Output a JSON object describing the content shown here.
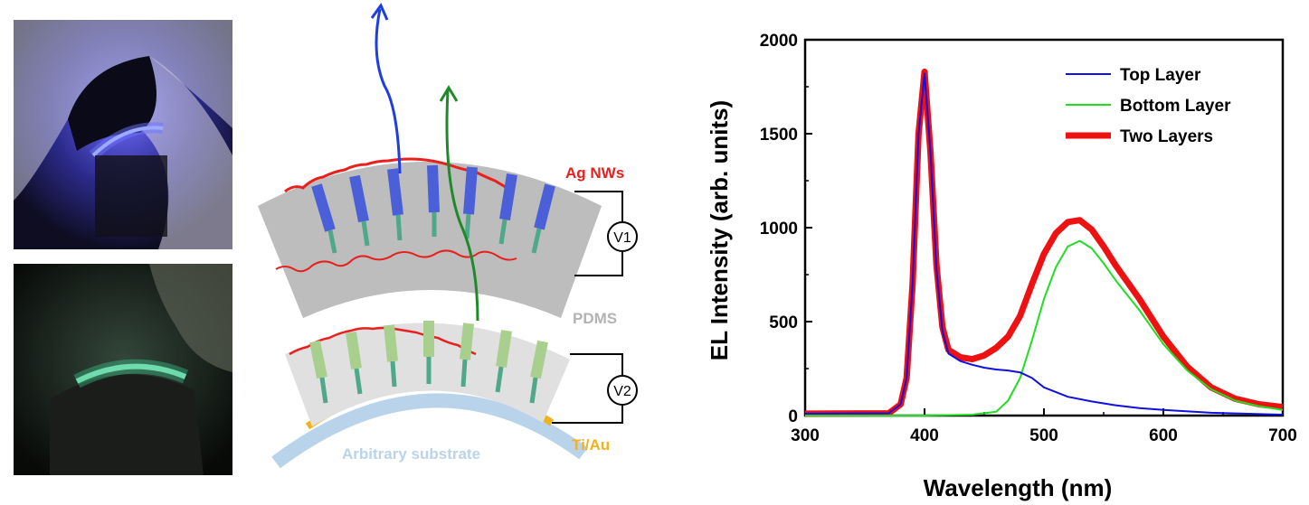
{
  "diagram": {
    "label_agnws": "Ag NWs",
    "label_v1": "V1",
    "label_v2": "V2",
    "label_pdms": "PDMS",
    "label_tiau": "Ti/Au",
    "label_substrate": "Arbitrary substrate",
    "colors": {
      "agnws": "#e8201e",
      "pdms": "#b3b3b3",
      "tiau": "#f2b21e",
      "substrate": "#b9d4ea",
      "blue_emission": "#1f3ee0",
      "green_emission": "#1f8a2a"
    }
  },
  "photos": {
    "top": {
      "color": "#3a2fd0"
    },
    "bottom": {
      "color": "#3fdc9a"
    }
  },
  "chart_data": {
    "type": "line",
    "xlabel": "Wavelength (nm)",
    "ylabel": "EL Intensity (arb. units)",
    "xlim": [
      300,
      700
    ],
    "ylim": [
      0,
      2000
    ],
    "xticks": [
      300,
      400,
      500,
      600,
      700
    ],
    "yticks": [
      0,
      500,
      1000,
      1500,
      2000
    ],
    "legend_position": "top-right",
    "series": [
      {
        "name": "Top Layer",
        "color": "#1010e0",
        "width": 2,
        "x": [
          300,
          370,
          380,
          385,
          390,
          395,
          400,
          405,
          410,
          415,
          420,
          430,
          440,
          450,
          460,
          470,
          480,
          490,
          500,
          520,
          540,
          560,
          580,
          600,
          640,
          700
        ],
        "y": [
          10,
          12,
          60,
          200,
          700,
          1500,
          1820,
          1400,
          780,
          450,
          330,
          290,
          270,
          255,
          245,
          240,
          230,
          200,
          150,
          100,
          75,
          55,
          40,
          30,
          15,
          5
        ]
      },
      {
        "name": "Bottom Layer",
        "color": "#22dd22",
        "width": 2,
        "x": [
          300,
          400,
          440,
          460,
          470,
          480,
          490,
          500,
          510,
          520,
          530,
          540,
          550,
          560,
          580,
          600,
          620,
          640,
          660,
          680,
          700
        ],
        "y": [
          0,
          0,
          5,
          20,
          80,
          200,
          400,
          620,
          790,
          900,
          930,
          890,
          810,
          720,
          560,
          380,
          240,
          140,
          80,
          50,
          30
        ]
      },
      {
        "name": "Two Layers",
        "color": "#ee1111",
        "width": 7,
        "x": [
          300,
          370,
          380,
          385,
          390,
          395,
          400,
          405,
          410,
          415,
          420,
          430,
          440,
          450,
          460,
          470,
          480,
          490,
          500,
          510,
          520,
          530,
          540,
          550,
          560,
          580,
          600,
          620,
          640,
          660,
          680,
          700
        ],
        "y": [
          10,
          12,
          60,
          200,
          700,
          1500,
          1830,
          1400,
          800,
          470,
          350,
          310,
          300,
          320,
          360,
          420,
          530,
          700,
          860,
          970,
          1030,
          1040,
          990,
          900,
          800,
          620,
          420,
          260,
          150,
          90,
          60,
          45
        ]
      }
    ]
  }
}
